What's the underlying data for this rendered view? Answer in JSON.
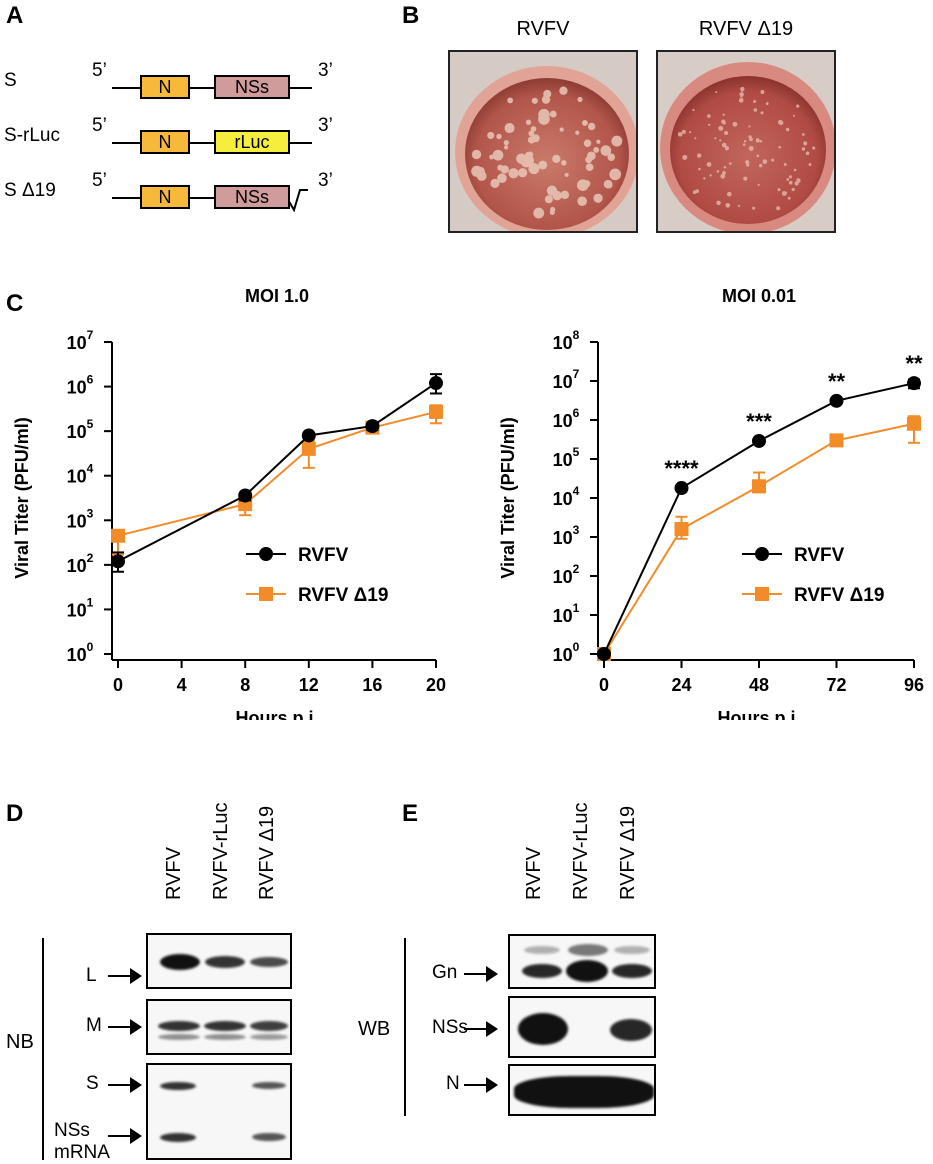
{
  "panels": {
    "a": "A",
    "b": "B",
    "c": "C",
    "d": "D",
    "e": "E"
  },
  "schematic": {
    "rows": [
      {
        "label": "S",
        "five": "5’",
        "three": "3’",
        "gene1": "N",
        "gene2": "NSs"
      },
      {
        "label": "S-rLuc",
        "five": "5’",
        "three": "3’",
        "gene1": "N",
        "gene2": "rLuc"
      },
      {
        "label": "S Δ19",
        "five": "5’",
        "three": "3’",
        "gene1": "N",
        "gene2": "NSs"
      }
    ],
    "colors": {
      "N": "#f6b93b",
      "NSs": "#d09b9b",
      "rLuc": "#f5ee3d"
    }
  },
  "plaques": {
    "left_title": "RVFV",
    "right_title": "RVFV Δ19"
  },
  "chart_data": [
    {
      "type": "line",
      "title": "MOI 1.0",
      "xlabel": "Hours p.i.",
      "ylabel": "Viral Titer (PFU/ml)",
      "yscale": "log",
      "ylim": [
        1,
        10000000
      ],
      "xlim": [
        0,
        20
      ],
      "xticks": [
        "0",
        "4",
        "8",
        "12",
        "16",
        "20"
      ],
      "yticks": [
        {
          "base": "10",
          "exp": "0"
        },
        {
          "base": "10",
          "exp": "1"
        },
        {
          "base": "10",
          "exp": "2"
        },
        {
          "base": "10",
          "exp": "3"
        },
        {
          "base": "10",
          "exp": "4"
        },
        {
          "base": "10",
          "exp": "5"
        },
        {
          "base": "10",
          "exp": "6"
        },
        {
          "base": "10",
          "exp": "7"
        }
      ],
      "legend": "center-right",
      "series": [
        {
          "name": "RVFV",
          "color": "#000000",
          "marker": "circle",
          "x": [
            0,
            8,
            12,
            16,
            20
          ],
          "y": [
            120,
            3600,
            80000,
            130000,
            1200000
          ],
          "err_lo": [
            70,
            2800,
            70000,
            105000,
            700000
          ],
          "err_hi": [
            190,
            4200,
            90000,
            150000,
            1900000
          ]
        },
        {
          "name": "RVFV Δ19",
          "color": "#f28c28",
          "marker": "square",
          "x": [
            0,
            8,
            12,
            16,
            20
          ],
          "y": [
            450,
            2300,
            40000,
            120000,
            270000
          ],
          "err_lo": [
            170,
            1300,
            15000,
            95000,
            150000
          ],
          "err_hi": [
            600,
            3300,
            60000,
            145000,
            380000
          ]
        }
      ],
      "annotations": []
    },
    {
      "type": "line",
      "title": "MOI 0.01",
      "xlabel": "Hours p.i.",
      "ylabel": "Viral Titer (PFU/ml)",
      "yscale": "log",
      "ylim": [
        1,
        100000000
      ],
      "xlim": [
        0,
        96
      ],
      "xticks": [
        "0",
        "24",
        "48",
        "72",
        "96"
      ],
      "yticks": [
        {
          "base": "10",
          "exp": "0"
        },
        {
          "base": "10",
          "exp": "1"
        },
        {
          "base": "10",
          "exp": "2"
        },
        {
          "base": "10",
          "exp": "3"
        },
        {
          "base": "10",
          "exp": "4"
        },
        {
          "base": "10",
          "exp": "5"
        },
        {
          "base": "10",
          "exp": "6"
        },
        {
          "base": "10",
          "exp": "7"
        },
        {
          "base": "10",
          "exp": "8"
        }
      ],
      "legend": "center-right",
      "series": [
        {
          "name": "RVFV",
          "color": "#000000",
          "marker": "circle",
          "x": [
            0,
            24,
            48,
            72,
            96
          ],
          "y": [
            1,
            18000,
            290000,
            3100000,
            8800000
          ],
          "err_lo": [
            0.8,
            15000,
            250000,
            2800000,
            6500000
          ],
          "err_hi": [
            1.2,
            21000,
            330000,
            3400000,
            11000000
          ]
        },
        {
          "name": "RVFV Δ19",
          "color": "#f28c28",
          "marker": "square",
          "x": [
            0,
            24,
            48,
            72,
            96
          ],
          "y": [
            1,
            1600,
            20000,
            300000,
            800000
          ],
          "err_lo": [
            0.7,
            900,
            14000,
            260000,
            260000
          ],
          "err_hi": [
            1.3,
            3300,
            45000,
            340000,
            1250000
          ]
        }
      ],
      "annotations": [
        {
          "x": 24,
          "y": 18000,
          "text": "****"
        },
        {
          "x": 48,
          "y": 290000,
          "text": "***"
        },
        {
          "x": 72,
          "y": 3100000,
          "text": "**"
        },
        {
          "x": 96,
          "y": 8800000,
          "text": "**"
        }
      ]
    }
  ],
  "northern": {
    "lanes": [
      "RVFV",
      "RVFV-rLuc",
      "RVFV Δ19"
    ],
    "group": "NB",
    "bands": [
      {
        "label": "L",
        "intensity": [
          1.0,
          0.75,
          0.55
        ]
      },
      {
        "label": "M",
        "intensity": [
          0.8,
          0.8,
          0.7
        ]
      },
      {
        "label": "S",
        "intensity": [
          0.7,
          0.0,
          0.5
        ]
      },
      {
        "label": "NSs mRNA",
        "intensity": [
          0.7,
          0.0,
          0.55
        ]
      }
    ]
  },
  "western": {
    "lanes": [
      "RVFV",
      "RVFV-rLuc",
      "RVFV Δ19"
    ],
    "group": "WB",
    "bands": [
      {
        "label": "Gn",
        "intensity": [
          0.8,
          1.0,
          0.8
        ]
      },
      {
        "label": "NSs",
        "intensity": [
          1.0,
          0.0,
          0.8
        ]
      },
      {
        "label": "N",
        "intensity": [
          1.0,
          0.95,
          1.0
        ]
      }
    ]
  }
}
